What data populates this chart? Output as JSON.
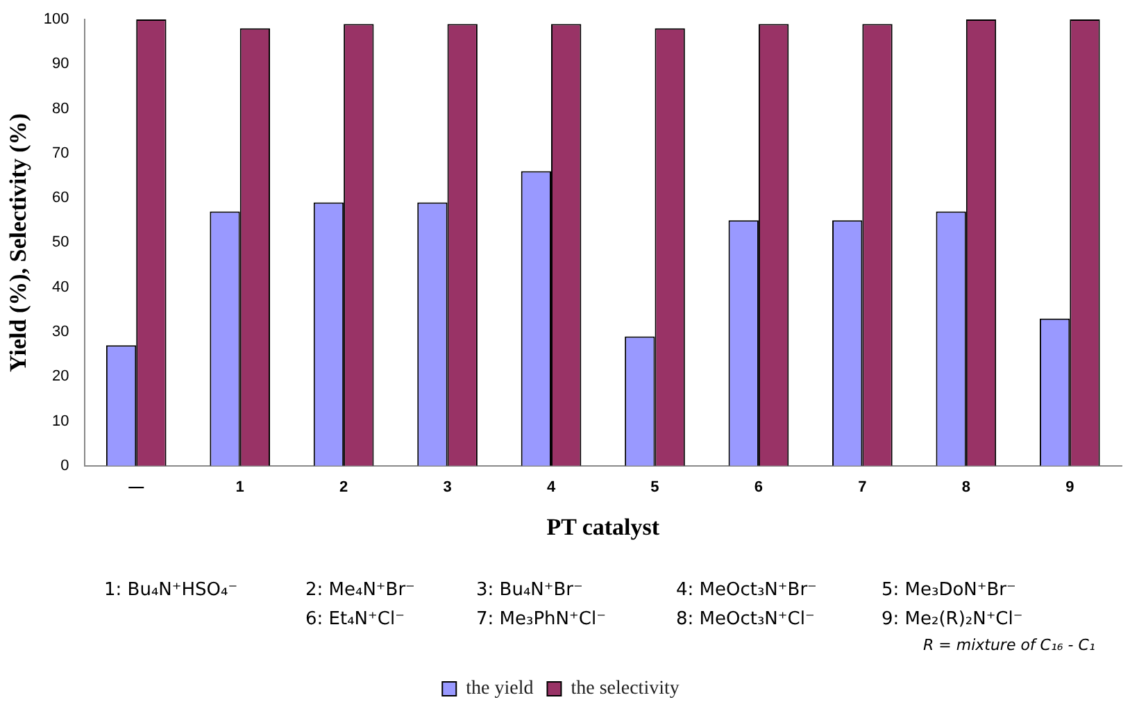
{
  "chart_data": {
    "type": "bar",
    "xlabel": "PT catalyst",
    "ylabel": "Yield (%), Selectivity (%)",
    "categories": [
      "—",
      "1",
      "2",
      "3",
      "4",
      "5",
      "6",
      "7",
      "8",
      "9"
    ],
    "series": [
      {
        "name": "the yield",
        "color": "#9999ff",
        "values": [
          27,
          57,
          59,
          59,
          66,
          29,
          55,
          55,
          57,
          33
        ]
      },
      {
        "name": "the selectivity",
        "color": "#993366",
        "values": [
          100,
          98,
          99,
          99,
          99,
          98,
          99,
          99,
          100,
          100
        ]
      }
    ],
    "ylim": [
      0,
      100
    ],
    "yticks": [
      0,
      10,
      20,
      30,
      40,
      50,
      60,
      70,
      80,
      90,
      100
    ],
    "grid": false,
    "legend": "bottom",
    "annotations": [
      "1: Bu₄N⁺HSO₄⁻",
      "2: Me₄N⁺Br⁻",
      "3: Bu₄N⁺Br⁻",
      "4: MeOct₃N⁺Br⁻",
      "5: Me₃DoN⁺Br⁻",
      "6: Et₄N⁺Cl⁻",
      "7: Me₃PhN⁺Cl⁻",
      "8: MeOct₃N⁺Cl⁻",
      "9: Me₂(R)₂N⁺Cl⁻",
      "R = mixture of C₁₆ - C₁"
    ]
  }
}
